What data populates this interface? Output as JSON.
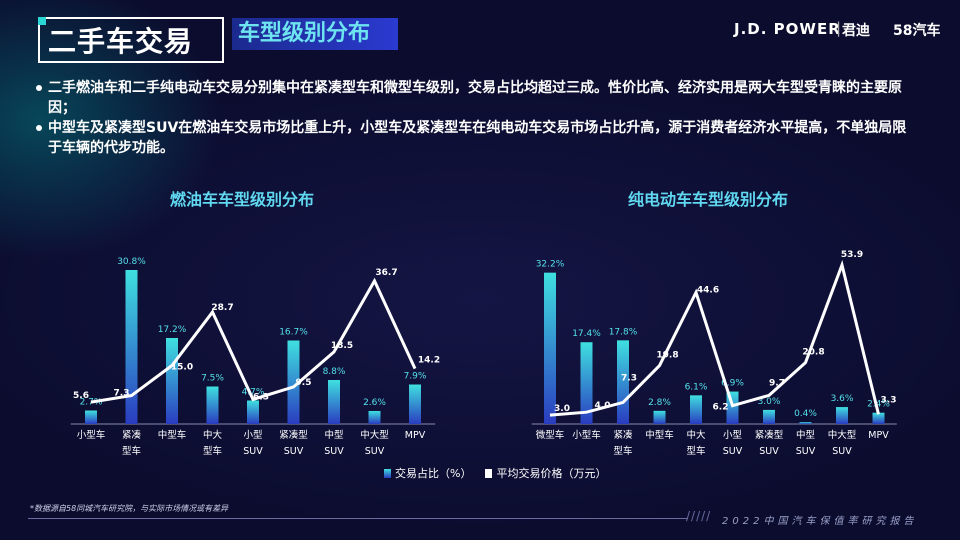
{
  "header": {
    "title": "二手车交易",
    "subtitle": "车型级别分布",
    "brand_jd": "J.D. POWER",
    "brand_sep": "|",
    "brand_jundi": "君迪",
    "brand_58": "58汽车"
  },
  "bullets": [
    "二手燃油车和二手纯电动车交易分别集中在紧凑型车和微型车级别，交易占比均超过三成。性价比高、经济实用是两大车型受青睐的主要原因；",
    "中型车及紧凑型SUV在燃油车交易市场比重上升，小型车及紧凑型车在纯电动车交易市场占比升高，源于消费者经济水平提高，不单独局限于车辆的代步功能。"
  ],
  "colors": {
    "bar_top": "#3fe0e0",
    "bar_bottom": "#2a3cc0",
    "line": "#ffffff",
    "label_pct": "#54e0e8"
  },
  "chart_data": [
    {
      "type": "bar",
      "title": "燃油车车型级别分布",
      "categories": [
        [
          "小型车"
        ],
        [
          "紧凑",
          "型车"
        ],
        [
          "中型车"
        ],
        [
          "中大",
          "型车"
        ],
        [
          "小型",
          "SUV"
        ],
        [
          "紧凑型",
          "SUV"
        ],
        [
          "中型",
          "SUV"
        ],
        [
          "中大型",
          "SUV"
        ],
        [
          "MPV"
        ]
      ],
      "series": [
        {
          "name": "交易占比（%）",
          "kind": "bar",
          "values": [
            2.7,
            30.8,
            17.2,
            7.5,
            4.7,
            16.7,
            8.8,
            2.6,
            7.9
          ],
          "labels": [
            "2.7%",
            "30.8%",
            "17.2%",
            "7.5%",
            "4.7%",
            "16.7%",
            "8.8%",
            "2.6%",
            "7.9%"
          ]
        },
        {
          "name": "平均交易价格（万元）",
          "kind": "line",
          "values": [
            5.6,
            7.3,
            15.0,
            28.7,
            6.3,
            9.5,
            18.5,
            36.7,
            14.2
          ],
          "labels": [
            "5.6",
            "7.3",
            "15.0",
            "28.7",
            "6.3",
            "9.5",
            "18.5",
            "36.7",
            "14.2"
          ]
        }
      ]
    },
    {
      "type": "bar",
      "title": "纯电动车车型级别分布",
      "categories": [
        [
          "微型车"
        ],
        [
          "小型车"
        ],
        [
          "紧凑",
          "型车"
        ],
        [
          "中型车"
        ],
        [
          "中大",
          "型车"
        ],
        [
          "小型",
          "SUV"
        ],
        [
          "紧凑型",
          "SUV"
        ],
        [
          "中型",
          "SUV"
        ],
        [
          "中大型",
          "SUV"
        ],
        [
          "MPV"
        ]
      ],
      "series": [
        {
          "name": "交易占比（%）",
          "kind": "bar",
          "values": [
            32.2,
            17.4,
            17.8,
            2.8,
            6.1,
            6.9,
            3.0,
            0.4,
            3.6,
            2.4
          ],
          "labels": [
            "32.2%",
            "17.4%",
            "17.8%",
            "2.8%",
            "6.1%",
            "6.9%",
            "3.0%",
            "0.4%",
            "3.6%",
            "2.4%"
          ]
        },
        {
          "name": "平均交易价格（万元）",
          "kind": "line",
          "values": [
            3.0,
            4.0,
            7.3,
            19.8,
            44.6,
            6.2,
            9.7,
            20.8,
            53.9,
            3.3
          ],
          "labels": [
            "3.0",
            "4.0",
            "7.3",
            "19.8",
            "44.6",
            "6.2",
            "9.7",
            "20.8",
            "53.9",
            "3.3"
          ]
        }
      ]
    }
  ],
  "legend": {
    "bar": "交易占比（%）",
    "line": "平均交易价格（万元）"
  },
  "footer": {
    "source": "*数据源自58同城汽车研究院，与实际市场情况或有差异",
    "slashes": "/////",
    "report": "2022中国汽车保值率研究报告"
  }
}
